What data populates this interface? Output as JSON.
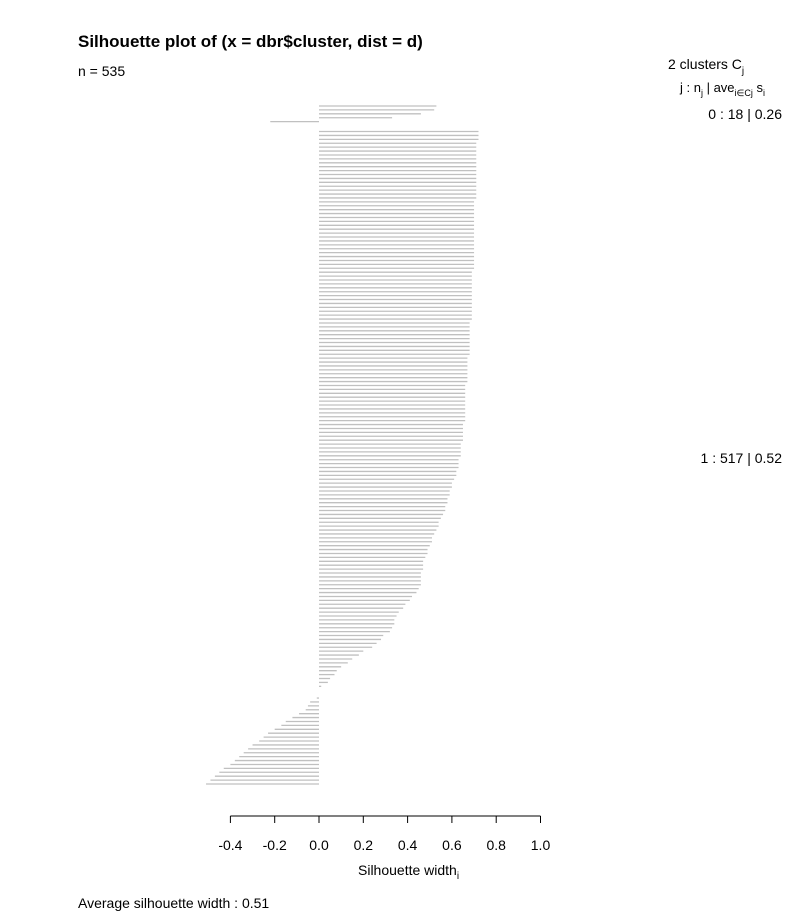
{
  "chart_data": {
    "type": "bar",
    "orientation": "horizontal",
    "title": "Silhouette plot of (x = dbr$cluster, dist = d)",
    "subtitle": "n = 535",
    "xlabel": "Silhouette width",
    "xlabel_sub": "i",
    "xlim": [
      -0.5,
      1.0
    ],
    "xticks": [
      "-0.4",
      "-0.2",
      "0.0",
      "0.2",
      "0.4",
      "0.6",
      "0.8",
      "1.0"
    ],
    "bar_color": "#c0c0c0",
    "legend_header": {
      "line1": "2  clusters  C",
      "line1_sub": "j",
      "line2_j": "j :  n",
      "line2_nsub": "j",
      "line2_sep": " | ave",
      "line2_avesub": "i∈Cj",
      "line2_s": "  s",
      "line2_ssub": "i"
    },
    "footer": "Average silhouette width :  0.51",
    "clusters": [
      {
        "label": "0 :   18  |  0.26",
        "values": [
          0.53,
          0.52,
          0.46,
          0.33,
          -0.22
        ]
      },
      {
        "label": "1 :   517  |  0.52",
        "values": [
          0.72,
          0.72,
          0.72,
          0.71,
          0.71,
          0.71,
          0.71,
          0.71,
          0.71,
          0.71,
          0.71,
          0.71,
          0.71,
          0.71,
          0.71,
          0.71,
          0.71,
          0.71,
          0.7,
          0.7,
          0.7,
          0.7,
          0.7,
          0.7,
          0.7,
          0.7,
          0.7,
          0.7,
          0.7,
          0.7,
          0.7,
          0.7,
          0.7,
          0.7,
          0.7,
          0.7,
          0.69,
          0.69,
          0.69,
          0.69,
          0.69,
          0.69,
          0.69,
          0.69,
          0.69,
          0.69,
          0.69,
          0.69,
          0.69,
          0.68,
          0.68,
          0.68,
          0.68,
          0.68,
          0.68,
          0.68,
          0.68,
          0.68,
          0.67,
          0.67,
          0.67,
          0.67,
          0.67,
          0.67,
          0.67,
          0.66,
          0.66,
          0.66,
          0.66,
          0.66,
          0.66,
          0.66,
          0.66,
          0.66,
          0.66,
          0.65,
          0.65,
          0.65,
          0.65,
          0.65,
          0.64,
          0.64,
          0.64,
          0.64,
          0.63,
          0.63,
          0.63,
          0.62,
          0.62,
          0.61,
          0.6,
          0.6,
          0.59,
          0.59,
          0.58,
          0.58,
          0.57,
          0.57,
          0.56,
          0.55,
          0.54,
          0.54,
          0.53,
          0.52,
          0.51,
          0.51,
          0.5,
          0.49,
          0.49,
          0.48,
          0.47,
          0.47,
          0.47,
          0.46,
          0.46,
          0.46,
          0.46,
          0.45,
          0.44,
          0.42,
          0.41,
          0.39,
          0.38,
          0.36,
          0.35,
          0.34,
          0.34,
          0.33,
          0.32,
          0.29,
          0.28,
          0.26,
          0.24,
          0.2,
          0.18,
          0.15,
          0.13,
          0.1,
          0.08,
          0.07,
          0.05,
          0.04,
          0.01,
          0.0,
          -0.0,
          -0.01,
          -0.04,
          -0.05,
          -0.06,
          -0.09,
          -0.12,
          -0.15,
          -0.17,
          -0.2,
          -0.23,
          -0.25,
          -0.27,
          -0.3,
          -0.32,
          -0.34,
          -0.36,
          -0.38,
          -0.4,
          -0.43,
          -0.45,
          -0.47,
          -0.49,
          -0.51
        ]
      }
    ]
  }
}
